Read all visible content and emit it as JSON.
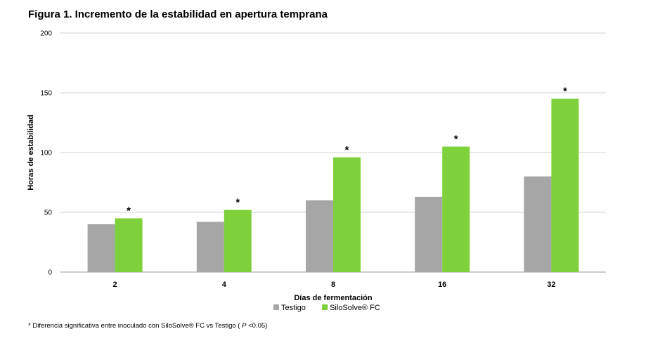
{
  "title": "Figura 1. Incremento de la estabilidad en apertura temprana",
  "footnote": {
    "prefix": "* Diferencia significativa entre inoculado con SiloSolve®  FC vs Testigo ( ",
    "p_italic": "P",
    "suffix": " <0.05)"
  },
  "chart_data": {
    "type": "bar",
    "xlabel": "Días de fermentación",
    "ylabel": "Horas de estabilidad",
    "categories": [
      "2",
      "4",
      "8",
      "16",
      "32"
    ],
    "ylim": [
      0,
      200
    ],
    "yticks": [
      0,
      50,
      100,
      150,
      200
    ],
    "grid": true,
    "legend_position": "bottom",
    "series": [
      {
        "name": "Testigo",
        "color": "#a6a6a6",
        "values": [
          40,
          42,
          60,
          63,
          80
        ]
      },
      {
        "name": "SiloSolve® FC",
        "color": "#7ed13b",
        "values": [
          45,
          52,
          96,
          105,
          145
        ]
      }
    ],
    "annotations": [
      "*",
      "*",
      "*",
      "*",
      "*"
    ]
  }
}
